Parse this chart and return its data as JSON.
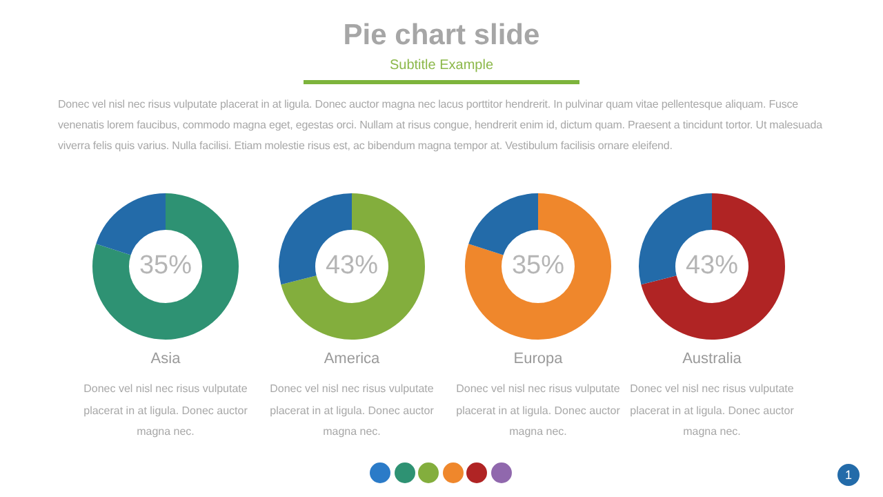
{
  "chart_data": [
    {
      "type": "other",
      "title": "Pie chart slide",
      "subtitle": "Subtitle Example",
      "annotations": [
        "Donec vel nisl nec risus vulputate placerat in at ligula. Donec auctor magna nec lacus porttitor hendrerit. In pulvinar quam vitae pellentesque aliquam. Fusce venenatis lorem faucibus, commodo magna eget, egestas orci. Nullam at risus congue, hendrerit enim id, dictum quam. Praesent a tincidunt tortor. Ut malesuada viverra felis quis varius. Nulla facilisi. Etiam molestie risus est, ac bibendum magna tempor at. Vestibulum facilisis ornare eleifend.",
        "1"
      ]
    },
    {
      "type": "donut",
      "title": "Asia",
      "categories": [
        null,
        null
      ],
      "values": [
        80,
        20
      ],
      "colors": [
        "#2e9273",
        "#236ba9"
      ],
      "annotations": [
        "35%",
        "Donec vel nisl nec risus vulputate placerat in at ligula. Donec auctor magna nec."
      ]
    },
    {
      "type": "donut",
      "title": "America",
      "categories": [
        null,
        null
      ],
      "values": [
        71,
        29
      ],
      "colors": [
        "#83ae3d",
        "#236ba9"
      ],
      "annotations": [
        "43%",
        "Donec vel nisl nec risus vulputate placerat in at ligula. Donec auctor magna nec."
      ]
    },
    {
      "type": "donut",
      "title": "Europa",
      "categories": [
        null,
        null
      ],
      "values": [
        80,
        20
      ],
      "colors": [
        "#ef872c",
        "#236ba9"
      ],
      "annotations": [
        "35%",
        "Donec vel nisl nec risus vulputate placerat in at ligula. Donec auctor magna nec."
      ]
    },
    {
      "type": "donut",
      "title": "Australia",
      "categories": [
        null,
        null
      ],
      "values": [
        71,
        29
      ],
      "colors": [
        "#b02424",
        "#236ba9"
      ],
      "annotations": [
        "43%",
        "Donec vel nisl nec risus vulputate placerat in at ligula. Donec auctor magna nec."
      ]
    }
  ]
}
